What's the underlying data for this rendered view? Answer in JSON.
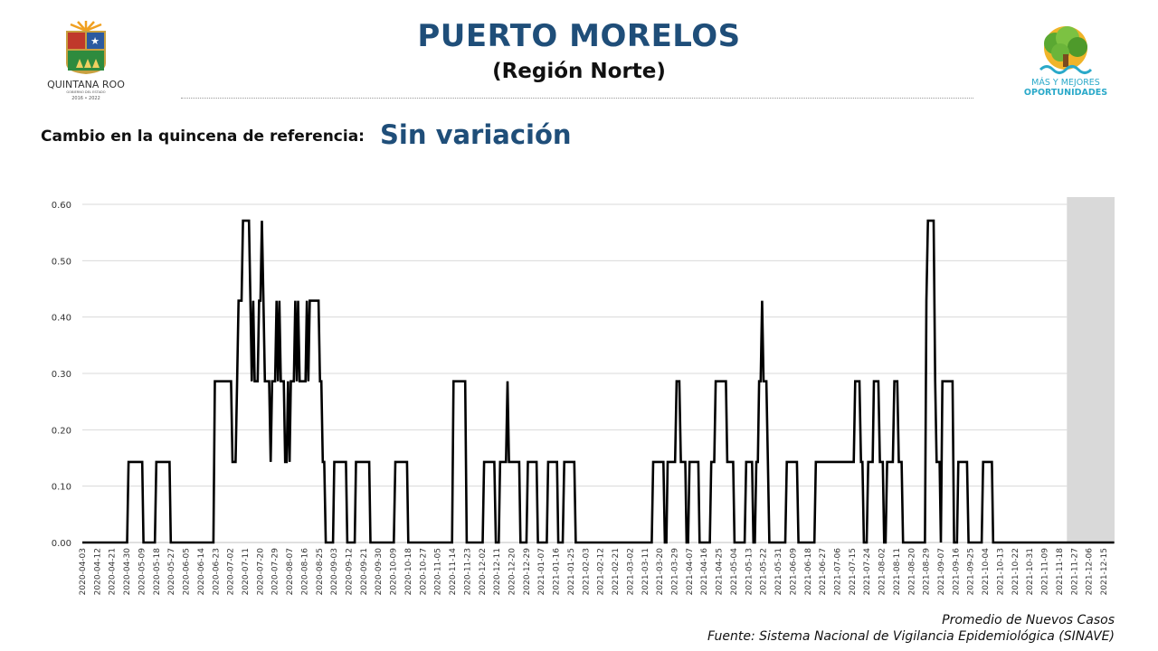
{
  "header": {
    "title": "PUERTO MORELOS",
    "subtitle": "(Región Norte)"
  },
  "left_logo": {
    "name": "QUINTANA ROO",
    "tagline": "GOBIERNO DEL ESTADO",
    "years": "2016 • 2022"
  },
  "right_logo": {
    "line1": "MÁS Y MEJORES",
    "line2": "OPORTUNIDADES"
  },
  "change": {
    "label": "Cambio en la quincena de referencia:",
    "value": "Sin variación"
  },
  "captions": {
    "series": "Promedio de Nuevos Casos",
    "source": "Fuente: Sistema Nacional de Vigilancia Epidemiológica (SINAVE)"
  },
  "colors": {
    "title_blue": "#1f4e79",
    "line": "#000000",
    "highlight": "#d9d9d9",
    "grid": "#d9d9d9"
  },
  "chart_data": {
    "type": "line",
    "ylim": [
      0,
      0.6
    ],
    "y_ticks": [
      "0.00",
      "0.10",
      "0.20",
      "0.30",
      "0.40",
      "0.50",
      "0.60"
    ],
    "grid": "horizontal",
    "x_tick_labels": [
      "2020-04-03",
      "2020-04-12",
      "2020-04-21",
      "2020-04-30",
      "2020-05-09",
      "2020-05-18",
      "2020-05-27",
      "2020-06-05",
      "2020-06-14",
      "2020-06-23",
      "2020-07-02",
      "2020-07-11",
      "2020-07-20",
      "2020-07-29",
      "2020-08-07",
      "2020-08-16",
      "2020-08-25",
      "2020-09-03",
      "2020-09-12",
      "2020-09-21",
      "2020-09-30",
      "2020-10-09",
      "2020-10-18",
      "2020-10-27",
      "2020-11-05",
      "2020-11-14",
      "2020-11-23",
      "2020-12-02",
      "2020-12-11",
      "2020-12-20",
      "2020-12-29",
      "2021-01-07",
      "2021-01-16",
      "2021-01-25",
      "2021-02-03",
      "2021-02-12",
      "2021-02-21",
      "2021-03-02",
      "2021-03-11",
      "2021-03-20",
      "2021-03-29",
      "2021-04-07",
      "2021-04-16",
      "2021-04-25",
      "2021-05-04",
      "2021-05-13",
      "2021-05-22",
      "2021-05-31",
      "2021-06-09",
      "2021-06-18",
      "2021-06-27",
      "2021-07-06",
      "2021-07-15",
      "2021-07-24",
      "2021-08-02",
      "2021-08-11",
      "2021-08-20",
      "2021-08-29",
      "2021-09-07",
      "2021-09-16",
      "2021-09-25",
      "2021-10-04",
      "2021-10-13",
      "2021-10-22",
      "2021-10-31",
      "2021-11-09",
      "2021-11-18",
      "2021-11-27",
      "2021-12-06",
      "2021-12-15"
    ],
    "highlight_range": [
      "2021-11-27",
      "2021-12-15"
    ],
    "series": [
      {
        "values": [
          [
            0.0,
            0.0
          ],
          [
            27.2,
            0.0
          ],
          [
            28.1,
            0.143
          ],
          [
            36.4,
            0.143
          ],
          [
            37.2,
            0.0
          ],
          [
            44.1,
            0.0
          ],
          [
            45.0,
            0.143
          ],
          [
            53.0,
            0.143
          ],
          [
            53.8,
            0.0
          ],
          [
            79.7,
            0.0
          ],
          [
            80.6,
            0.286
          ],
          [
            90.4,
            0.286
          ],
          [
            91.3,
            0.143
          ],
          [
            93.2,
            0.143
          ],
          [
            94.1,
            0.286
          ],
          [
            95.0,
            0.429
          ],
          [
            96.8,
            0.429
          ],
          [
            97.7,
            0.571
          ],
          [
            101.3,
            0.571
          ],
          [
            102.2,
            0.429
          ],
          [
            103.0,
            0.286
          ],
          [
            103.9,
            0.429
          ],
          [
            104.8,
            0.286
          ],
          [
            106.6,
            0.286
          ],
          [
            107.5,
            0.429
          ],
          [
            108.3,
            0.429
          ],
          [
            109.2,
            0.571
          ],
          [
            110.1,
            0.429
          ],
          [
            111.0,
            0.286
          ],
          [
            113.6,
            0.286
          ],
          [
            114.5,
            0.143
          ],
          [
            115.4,
            0.286
          ],
          [
            117.2,
            0.286
          ],
          [
            118.1,
            0.429
          ],
          [
            119.0,
            0.286
          ],
          [
            119.8,
            0.429
          ],
          [
            120.7,
            0.286
          ],
          [
            122.5,
            0.286
          ],
          [
            123.3,
            0.143
          ],
          [
            124.2,
            0.143
          ],
          [
            125.1,
            0.286
          ],
          [
            126.0,
            0.143
          ],
          [
            126.8,
            0.286
          ],
          [
            128.6,
            0.286
          ],
          [
            129.5,
            0.429
          ],
          [
            130.4,
            0.286
          ],
          [
            131.2,
            0.429
          ],
          [
            132.1,
            0.286
          ],
          [
            135.7,
            0.286
          ],
          [
            136.5,
            0.429
          ],
          [
            137.4,
            0.286
          ],
          [
            138.3,
            0.429
          ],
          [
            143.6,
            0.429
          ],
          [
            144.5,
            0.286
          ],
          [
            145.3,
            0.286
          ],
          [
            146.2,
            0.143
          ],
          [
            147.1,
            0.143
          ],
          [
            148.0,
            0.0
          ],
          [
            152.4,
            0.0
          ],
          [
            153.2,
            0.143
          ],
          [
            160.3,
            0.143
          ],
          [
            161.1,
            0.0
          ],
          [
            165.6,
            0.0
          ],
          [
            166.4,
            0.143
          ],
          [
            174.4,
            0.143
          ],
          [
            175.2,
            0.0
          ],
          [
            189.4,
            0.0
          ],
          [
            190.3,
            0.143
          ],
          [
            197.4,
            0.143
          ],
          [
            198.2,
            0.0
          ],
          [
            224.8,
            0.0
          ],
          [
            225.7,
            0.286
          ],
          [
            232.8,
            0.286
          ],
          [
            233.7,
            0.0
          ],
          [
            243.4,
            0.0
          ],
          [
            244.3,
            0.143
          ],
          [
            250.5,
            0.143
          ],
          [
            251.4,
            0.0
          ],
          [
            253.2,
            0.0
          ],
          [
            254.0,
            0.143
          ],
          [
            257.6,
            0.143
          ],
          [
            258.5,
            0.286
          ],
          [
            259.4,
            0.143
          ],
          [
            265.6,
            0.143
          ],
          [
            266.4,
            0.0
          ],
          [
            270.0,
            0.0
          ],
          [
            270.9,
            0.143
          ],
          [
            276.2,
            0.143
          ],
          [
            277.0,
            0.0
          ],
          [
            282.4,
            0.0
          ],
          [
            283.2,
            0.143
          ],
          [
            288.6,
            0.143
          ],
          [
            289.4,
            0.0
          ],
          [
            292.1,
            0.0
          ],
          [
            293.0,
            0.143
          ],
          [
            299.1,
            0.143
          ],
          [
            300.0,
            0.0
          ],
          [
            346.2,
            0.0
          ],
          [
            347.1,
            0.143
          ],
          [
            353.3,
            0.143
          ],
          [
            354.2,
            0.0
          ],
          [
            355.1,
            0.0
          ],
          [
            355.9,
            0.143
          ],
          [
            360.4,
            0.143
          ],
          [
            361.3,
            0.286
          ],
          [
            363.0,
            0.286
          ],
          [
            363.9,
            0.143
          ],
          [
            366.6,
            0.143
          ],
          [
            367.4,
            0.0
          ],
          [
            368.3,
            0.0
          ],
          [
            369.2,
            0.143
          ],
          [
            374.5,
            0.143
          ],
          [
            375.3,
            0.0
          ],
          [
            381.5,
            0.0
          ],
          [
            382.4,
            0.143
          ],
          [
            384.2,
            0.143
          ],
          [
            385.1,
            0.286
          ],
          [
            391.3,
            0.286
          ],
          [
            392.1,
            0.143
          ],
          [
            395.7,
            0.143
          ],
          [
            396.5,
            0.0
          ],
          [
            402.7,
            0.0
          ],
          [
            403.6,
            0.143
          ],
          [
            407.2,
            0.143
          ],
          [
            408.0,
            0.0
          ],
          [
            408.9,
            0.0
          ],
          [
            409.8,
            0.143
          ],
          [
            410.7,
            0.143
          ],
          [
            411.5,
            0.286
          ],
          [
            412.4,
            0.286
          ],
          [
            413.3,
            0.429
          ],
          [
            414.2,
            0.286
          ],
          [
            415.9,
            0.286
          ],
          [
            416.8,
            0.143
          ],
          [
            417.7,
            0.0
          ],
          [
            427.4,
            0.0
          ],
          [
            428.3,
            0.143
          ],
          [
            434.5,
            0.143
          ],
          [
            435.4,
            0.0
          ],
          [
            445.1,
            0.0
          ],
          [
            446.0,
            0.143
          ],
          [
            469.0,
            0.143
          ],
          [
            469.9,
            0.286
          ],
          [
            472.5,
            0.286
          ],
          [
            473.4,
            0.143
          ],
          [
            474.3,
            0.143
          ],
          [
            475.2,
            0.0
          ],
          [
            476.9,
            0.0
          ],
          [
            477.8,
            0.143
          ],
          [
            480.5,
            0.143
          ],
          [
            481.3,
            0.286
          ],
          [
            484.0,
            0.286
          ],
          [
            484.9,
            0.143
          ],
          [
            486.7,
            0.143
          ],
          [
            487.5,
            0.0
          ],
          [
            488.4,
            0.0
          ],
          [
            489.3,
            0.143
          ],
          [
            492.8,
            0.143
          ],
          [
            493.7,
            0.286
          ],
          [
            495.5,
            0.286
          ],
          [
            496.4,
            0.143
          ],
          [
            498.1,
            0.143
          ],
          [
            499.0,
            0.0
          ],
          [
            512.3,
            0.0
          ],
          [
            513.2,
            0.429
          ],
          [
            514.1,
            0.571
          ],
          [
            517.6,
            0.571
          ],
          [
            518.5,
            0.286
          ],
          [
            519.4,
            0.143
          ],
          [
            521.2,
            0.143
          ],
          [
            522.0,
            0.0
          ],
          [
            522.9,
            0.286
          ],
          [
            529.1,
            0.286
          ],
          [
            530.0,
            0.0
          ],
          [
            531.8,
            0.0
          ],
          [
            532.6,
            0.143
          ],
          [
            537.9,
            0.143
          ],
          [
            538.8,
            0.0
          ],
          [
            546.8,
            0.0
          ],
          [
            547.7,
            0.143
          ],
          [
            553.0,
            0.143
          ],
          [
            553.8,
            0.0
          ],
          [
            627.4,
            0.0
          ]
        ]
      }
    ]
  }
}
